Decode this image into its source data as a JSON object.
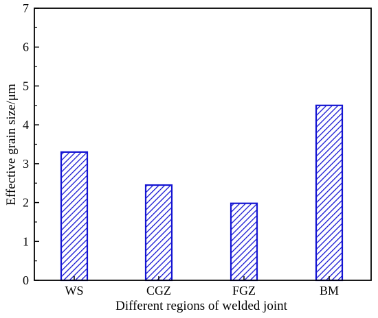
{
  "chart_data": {
    "type": "bar",
    "title": "",
    "xlabel": "Different regions of welded joint",
    "ylabel": "Effective grain size/μm",
    "categories": [
      "WS",
      "CGZ",
      "FGZ",
      "BM"
    ],
    "values": [
      3.3,
      2.45,
      1.98,
      4.5
    ],
    "ylim": [
      0,
      7
    ],
    "yticks": [
      "0",
      "1",
      "2",
      "3",
      "4",
      "5",
      "6",
      "7"
    ],
    "grid": false,
    "bar_fill": "diagonal-hatch",
    "bar_color": "#1414d2"
  }
}
